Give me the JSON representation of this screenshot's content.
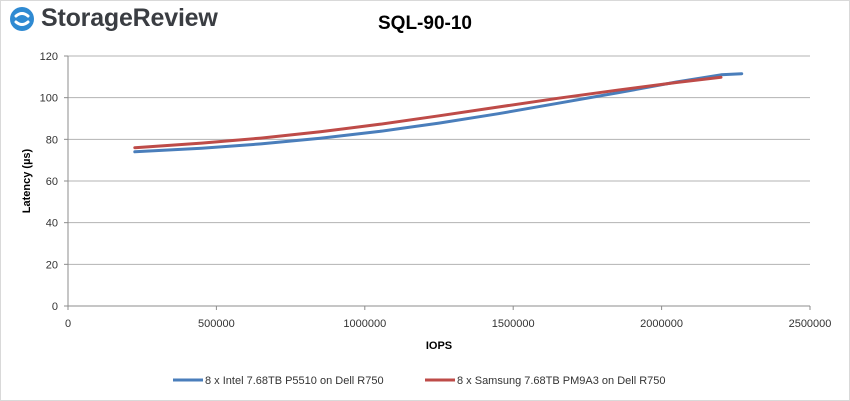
{
  "logo": {
    "text": "StorageReview"
  },
  "chart_data": {
    "type": "line",
    "title": "SQL-90-10",
    "xlabel": "IOPS",
    "ylabel": "Latency (µs)",
    "xlim": [
      0,
      2500000
    ],
    "ylim": [
      0,
      120
    ],
    "xticks": [
      0,
      500000,
      1000000,
      1500000,
      2000000,
      2500000
    ],
    "yticks": [
      0,
      20,
      40,
      60,
      80,
      100,
      120
    ],
    "grid": "horizontal",
    "legend_position": "bottom",
    "series": [
      {
        "name": "8 x Intel 7.68TB P5510 on Dell R750",
        "color": "#4a7ebb",
        "x": [
          225000,
          450000,
          650000,
          850000,
          1050000,
          1250000,
          1450000,
          1650000,
          1850000,
          2050000,
          2200000,
          2270000
        ],
        "y": [
          74,
          75.7,
          77.8,
          80.5,
          83.8,
          87.8,
          92.3,
          97.3,
          102.3,
          107.5,
          111,
          111.5
        ]
      },
      {
        "name": "8 x Samsung 7.68TB PM9A3 on Dell R750",
        "color": "#be4b48",
        "x": [
          225000,
          450000,
          650000,
          850000,
          1050000,
          1250000,
          1450000,
          1650000,
          1850000,
          2050000,
          2200000
        ],
        "y": [
          76,
          78.2,
          80.6,
          83.6,
          87.2,
          91.3,
          95.5,
          99.7,
          103.6,
          107.3,
          109.8
        ]
      }
    ]
  }
}
